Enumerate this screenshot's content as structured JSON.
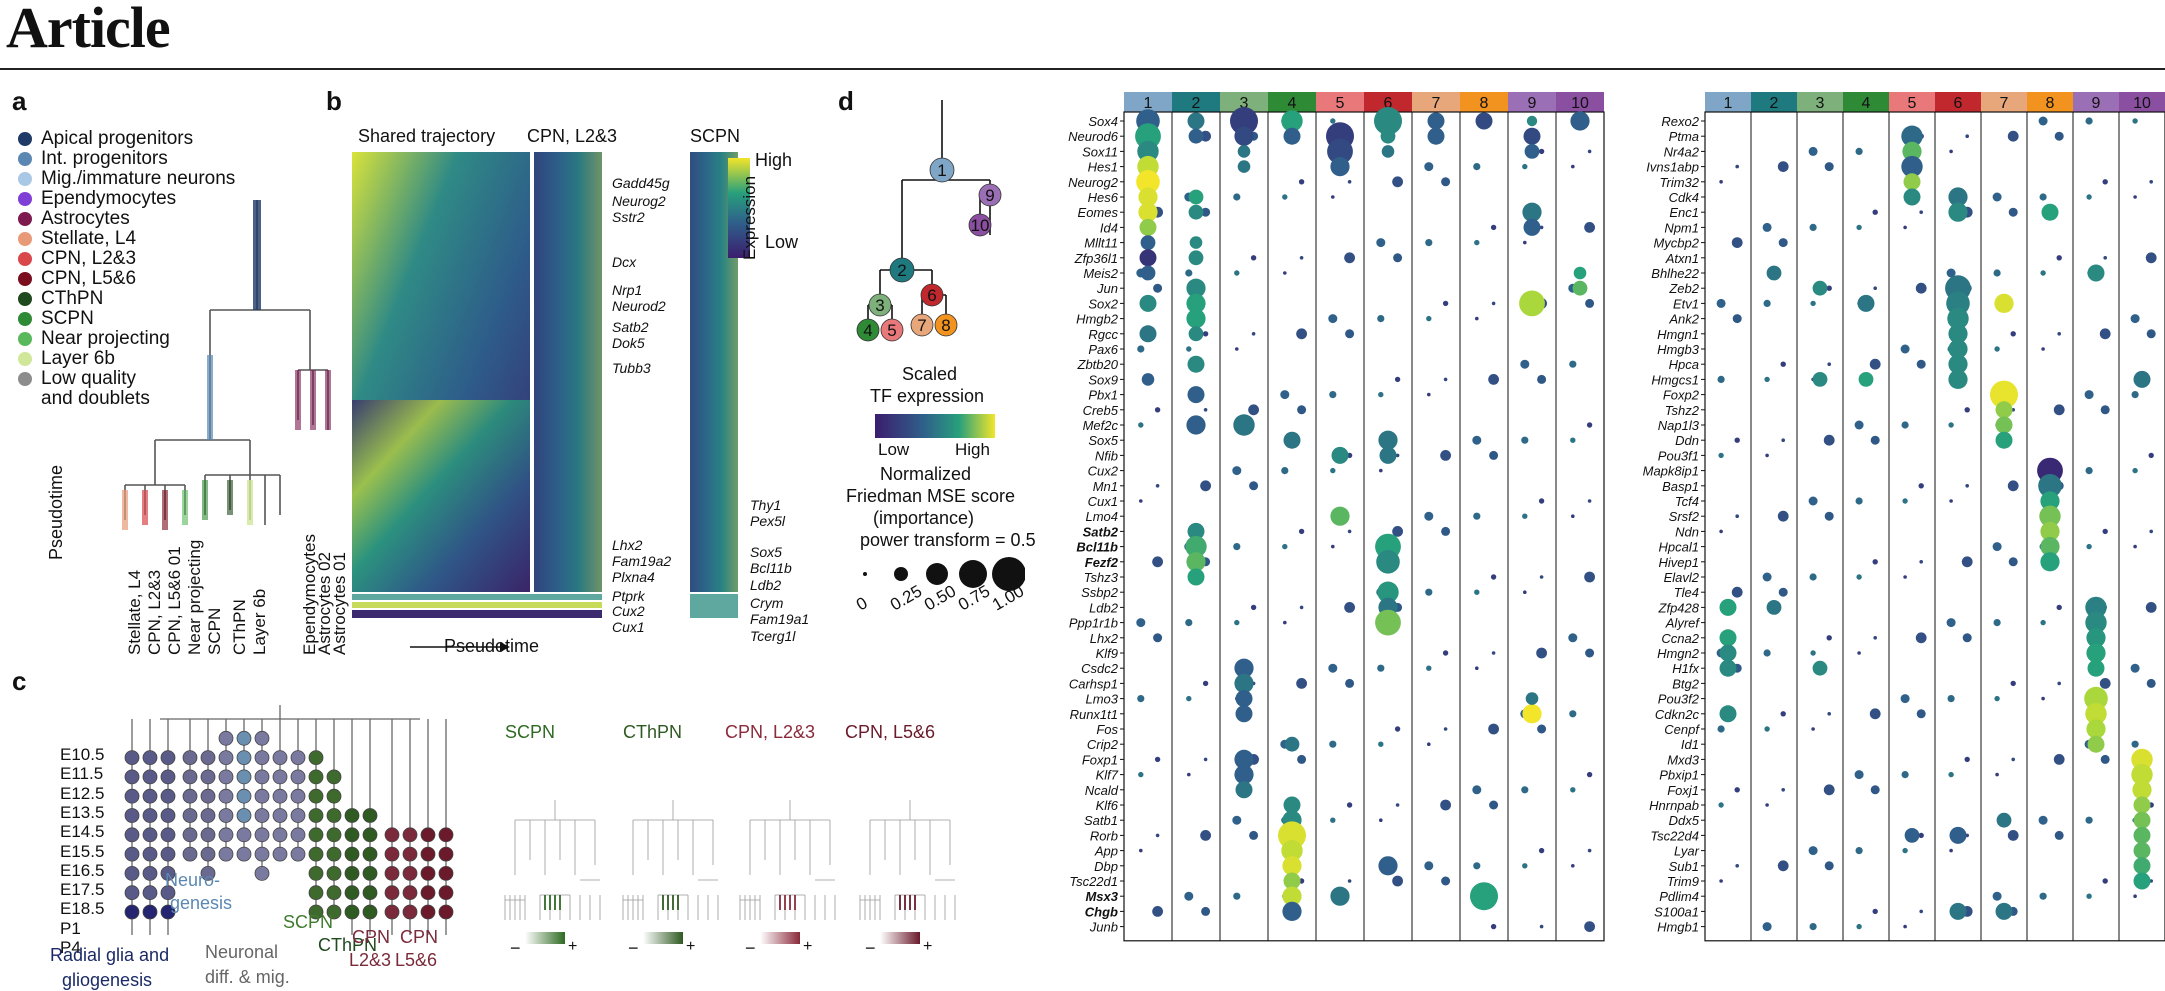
{
  "header": {
    "title": "Article"
  },
  "panel_labels": {
    "a": "a",
    "b": "b",
    "c": "c",
    "d": "d"
  },
  "panel_a": {
    "legend": [
      {
        "label": "Apical progenitors",
        "color": "#1f3a66"
      },
      {
        "label": "Int. progenitors",
        "color": "#5b88b3"
      },
      {
        "label": "Mig./immature neurons",
        "color": "#a9c8e6"
      },
      {
        "label": "Ependymocytes",
        "color": "#7f3fd6"
      },
      {
        "label": "Astrocytes",
        "color": "#7d1b4e"
      },
      {
        "label": "Stellate, L4",
        "color": "#e89a78"
      },
      {
        "label": "CPN, L2&3",
        "color": "#d9474a"
      },
      {
        "label": "CPN, L5&6",
        "color": "#7a0e1e"
      },
      {
        "label": "CThPN",
        "color": "#1f4a1d"
      },
      {
        "label": "SCPN",
        "color": "#2f8a36"
      },
      {
        "label": "Near projecting",
        "color": "#59b85c"
      },
      {
        "label": "Layer 6b",
        "color": "#d0e79a"
      },
      {
        "label": "Low quality",
        "color": "#8c8c8c"
      },
      {
        "label": "and doublets",
        "color": ""
      }
    ],
    "pseudotime_label": "Pseudotime",
    "leaf_labels": [
      "Stellate, L4",
      "CPN, L2&3",
      "CPN, L5&6 01",
      "Near projecting",
      "SCPN",
      "CThPN",
      "Layer 6b",
      "Ependymocytes",
      "Astrocytes 02",
      "Astrocytes 01"
    ]
  },
  "panel_b": {
    "titles": [
      "Shared trajectory",
      "CPN, L2&3",
      "SCPN"
    ],
    "colorbar": {
      "title": "Expression",
      "high": "High",
      "low": "Low"
    },
    "genes_cpn": [
      "Gadd45g",
      "Neurog2",
      "Sstr2",
      "Dcx",
      "Nrp1",
      "Neurod2",
      "Satb2",
      "Dok5",
      "Tubb3",
      "Lhx2",
      "Fam19a2",
      "Plxna4",
      "Ptprk",
      "Cux2",
      "Cux1"
    ],
    "genes_scpn": [
      "Thy1",
      "Pex5l",
      "Sox5",
      "Bcl11b",
      "Ldb2",
      "Crym",
      "Fam19a1",
      "Tcerg1l"
    ],
    "x_label": "Pseudotime"
  },
  "panel_c": {
    "stages": [
      "E10.5",
      "E11.5",
      "E12.5",
      "E13.5",
      "E14.5",
      "E15.5",
      "E16.5",
      "E17.5",
      "E18.5",
      "P1",
      "P4"
    ],
    "group_labels": [
      "Radial glia and",
      "gliogenesis",
      "Neuro-",
      "genesis",
      "Neuronal",
      "diff. & mig.",
      "SCPN",
      "CThPN",
      "CPN",
      "L2&3",
      "CPN",
      "L5&6"
    ],
    "subtree_titles": [
      "SCPN",
      "CThPN",
      "CPN, L2&3",
      "CPN, L5&6"
    ],
    "minus": "−",
    "plus": "+"
  },
  "panel_d": {
    "tree_nodes": [
      "1",
      "2",
      "3",
      "4",
      "5",
      "6",
      "7",
      "8",
      "9",
      "10"
    ],
    "tf_legend": {
      "title1": "Scaled",
      "title2": "TF expression",
      "low": "Low",
      "high": "High"
    },
    "size_legend": {
      "title": [
        "Normalized",
        "Friedman MSE score",
        "(importance)",
        "power transform = 0.5"
      ],
      "ticks": [
        "0",
        "0.25",
        "0.50",
        "0.75",
        "1.00"
      ]
    },
    "cluster_labels": [
      "1",
      "2",
      "3",
      "4",
      "5",
      "6",
      "7",
      "8",
      "9",
      "10"
    ],
    "cluster_colors": [
      "#7fa6c6",
      "#1f7a80",
      "#7db07a",
      "#2f8a36",
      "#e8787a",
      "#c0282d",
      "#e8a77a",
      "#f2921f",
      "#9b6fb5",
      "#8a4fa0"
    ],
    "genes_left": [
      "Sox4",
      "Neurod6",
      "Sox11",
      "Hes1",
      "Neurog2",
      "Hes6",
      "Eomes",
      "Id4",
      "Mllt11",
      "Zfp36l1",
      "Meis2",
      "Jun",
      "Sox2",
      "Hmgb2",
      "Rgcc",
      "Pax6",
      "Zbtb20",
      "Sox9",
      "Pbx1",
      "Creb5",
      "Mef2c",
      "Sox5",
      "Nfib",
      "Cux2",
      "Mn1",
      "Cux1",
      "Lmo4",
      "Satb2",
      "Bcl11b",
      "Fezf2",
      "Tshz3",
      "Ssbp2",
      "Ldb2",
      "Ppp1r1b",
      "Lhx2",
      "Klf9",
      "Csdc2",
      "Carhsp1",
      "Lmo3",
      "Runx1t1",
      "Fos",
      "Crip2",
      "Foxp1",
      "Klf7",
      "Ncald",
      "Klf6",
      "Satb1",
      "Rorb",
      "App",
      "Dbp",
      "Tsc22d1",
      "Msx3",
      "Chgb",
      "Junb"
    ],
    "genes_left_bold": [
      "Satb2",
      "Bcl11b",
      "Fezf2",
      "Msx3",
      "Chgb"
    ],
    "genes_right": [
      "Rexo2",
      "Ptma",
      "Nr4a2",
      "Ivns1abp",
      "Trim32",
      "Cdk4",
      "Enc1",
      "Npm1",
      "Mycbp2",
      "Atxn1",
      "Bhlhe22",
      "Zeb2",
      "Etv1",
      "Ank2",
      "Hmgn1",
      "Hmgb3",
      "Hpca",
      "Hmgcs1",
      "Foxp2",
      "Tshz2",
      "Nap1l3",
      "Ddn",
      "Pou3f1",
      "Mapk8ip1",
      "Basp1",
      "Tcf4",
      "Srsf2",
      "Ndn",
      "Hpcal1",
      "Hivep1",
      "Elavl2",
      "Tle4",
      "Zfp428",
      "Alyref",
      "Ccna2",
      "Hmgn2",
      "H1fx",
      "Btg2",
      "Pou3f2",
      "Cdkn2c",
      "Cenpf",
      "Id1",
      "Mxd3",
      "Pbxip1",
      "Foxj1",
      "Hnrnpab",
      "Ddx5",
      "Tsc22d4",
      "Lyar",
      "Sub1",
      "Trim9",
      "Pdlim4",
      "S100a1",
      "Hmgb1"
    ],
    "dots_left": [
      [
        0,
        0,
        0.8,
        0.3
      ],
      [
        1,
        0,
        0.5,
        0.4
      ],
      [
        2,
        0,
        1.0,
        0.15
      ],
      [
        3,
        0,
        0.7,
        0.6
      ],
      [
        5,
        0,
        1.0,
        0.5
      ],
      [
        6,
        0,
        0.5,
        0.3
      ],
      [
        7,
        0,
        0.5,
        0.2
      ],
      [
        8,
        0,
        0.2,
        0.5
      ],
      [
        0,
        1,
        0.9,
        0.6
      ],
      [
        1,
        1,
        0.4,
        0.3
      ],
      [
        2,
        1,
        0.6,
        0.2
      ],
      [
        3,
        1,
        0.5,
        0.3
      ],
      [
        4,
        1,
        1.0,
        0.15
      ],
      [
        5,
        1,
        0.4,
        0.5
      ],
      [
        6,
        1,
        0.5,
        0.3
      ],
      [
        8,
        1,
        0.5,
        0.2
      ],
      [
        0,
        2,
        0.7,
        0.5
      ],
      [
        2,
        2,
        0.3,
        0.4
      ],
      [
        4,
        2,
        0.9,
        0.2
      ],
      [
        5,
        2,
        0.3,
        0.4
      ],
      [
        8,
        2,
        0.4,
        0.3
      ],
      [
        0,
        3,
        0.7,
        0.9
      ],
      [
        2,
        3,
        0.3,
        0.4
      ],
      [
        4,
        3,
        0.6,
        0.3
      ],
      [
        0,
        4,
        0.8,
        1.0
      ],
      [
        0,
        5,
        0.6,
        0.95
      ],
      [
        0,
        6,
        0.6,
        0.95
      ],
      [
        0,
        7,
        0.5,
        0.8
      ],
      [
        8,
        6,
        0.6,
        0.4
      ],
      [
        8,
        7,
        0.5,
        0.3
      ],
      [
        1,
        5,
        0.4,
        0.6
      ],
      [
        1,
        6,
        0.4,
        0.5
      ],
      [
        0,
        8,
        0.4,
        0.3
      ],
      [
        1,
        8,
        0.3,
        0.5
      ],
      [
        0,
        9,
        0.5,
        0.1
      ],
      [
        1,
        9,
        0.4,
        0.5
      ],
      [
        0,
        10,
        0.4,
        0.3
      ],
      [
        1,
        11,
        0.6,
        0.5
      ],
      [
        0,
        12,
        0.5,
        0.5
      ],
      [
        1,
        12,
        0.6,
        0.6
      ],
      [
        8,
        12,
        0.9,
        0.85
      ],
      [
        1,
        13,
        0.6,
        0.6
      ],
      [
        0,
        14,
        0.5,
        0.4
      ],
      [
        1,
        14,
        0.4,
        0.5
      ],
      [
        1,
        16,
        0.5,
        0.5
      ],
      [
        0,
        17,
        0.3,
        0.3
      ],
      [
        1,
        18,
        0.5,
        0.3
      ],
      [
        1,
        20,
        0.6,
        0.3
      ],
      [
        2,
        20,
        0.7,
        0.4
      ],
      [
        3,
        21,
        0.5,
        0.4
      ],
      [
        4,
        22,
        0.5,
        0.5
      ],
      [
        5,
        21,
        0.6,
        0.4
      ],
      [
        5,
        22,
        0.5,
        0.4
      ],
      [
        5,
        28,
        0.9,
        0.6
      ],
      [
        5,
        29,
        0.8,
        0.5
      ],
      [
        1,
        27,
        0.5,
        0.5
      ],
      [
        1,
        28,
        0.7,
        0.65
      ],
      [
        1,
        29,
        0.6,
        0.7
      ],
      [
        1,
        30,
        0.5,
        0.6
      ],
      [
        5,
        31,
        0.7,
        0.55
      ],
      [
        5,
        32,
        0.6,
        0.4
      ],
      [
        5,
        33,
        0.9,
        0.75
      ],
      [
        2,
        36,
        0.6,
        0.3
      ],
      [
        2,
        37,
        0.6,
        0.4
      ],
      [
        2,
        38,
        0.5,
        0.3
      ],
      [
        2,
        39,
        0.5,
        0.3
      ],
      [
        3,
        41,
        0.4,
        0.4
      ],
      [
        2,
        42,
        0.6,
        0.3
      ],
      [
        2,
        43,
        0.6,
        0.3
      ],
      [
        2,
        44,
        0.5,
        0.4
      ],
      [
        3,
        45,
        0.5,
        0.5
      ],
      [
        3,
        46,
        0.6,
        0.5
      ],
      [
        3,
        47,
        1.0,
        0.95
      ],
      [
        3,
        48,
        0.7,
        0.9
      ],
      [
        3,
        49,
        0.6,
        0.95
      ],
      [
        3,
        50,
        0.5,
        0.8
      ],
      [
        3,
        51,
        0.6,
        0.9
      ],
      [
        4,
        51,
        0.6,
        0.4
      ],
      [
        7,
        51,
        1.0,
        0.6
      ],
      [
        3,
        52,
        0.6,
        0.3
      ],
      [
        5,
        49,
        0.6,
        0.3
      ],
      [
        8,
        39,
        0.6,
        1.0
      ],
      [
        8,
        38,
        0.3,
        0.4
      ],
      [
        4,
        26,
        0.6,
        0.7
      ],
      [
        9,
        0,
        0.6,
        0.3
      ],
      [
        9,
        10,
        0.3,
        0.6
      ],
      [
        9,
        11,
        0.4,
        0.7
      ]
    ],
    "dots_right": [
      [
        4,
        1,
        0.7,
        0.35
      ],
      [
        4,
        2,
        0.6,
        0.7
      ],
      [
        4,
        3,
        0.7,
        0.3
      ],
      [
        4,
        4,
        0.5,
        0.8
      ],
      [
        4,
        5,
        0.5,
        0.5
      ],
      [
        5,
        5,
        0.6,
        0.4
      ],
      [
        5,
        6,
        0.6,
        0.5
      ],
      [
        7,
        6,
        0.5,
        0.6
      ],
      [
        5,
        11,
        0.9,
        0.4
      ],
      [
        5,
        12,
        0.8,
        0.45
      ],
      [
        6,
        12,
        0.6,
        0.95
      ],
      [
        5,
        13,
        0.7,
        0.5
      ],
      [
        5,
        14,
        0.6,
        0.5
      ],
      [
        5,
        15,
        0.6,
        0.5
      ],
      [
        5,
        16,
        0.6,
        0.5
      ],
      [
        5,
        17,
        0.6,
        0.5
      ],
      [
        6,
        18,
        1.0,
        0.98
      ],
      [
        6,
        19,
        0.5,
        0.8
      ],
      [
        6,
        20,
        0.5,
        0.75
      ],
      [
        6,
        21,
        0.5,
        0.6
      ],
      [
        7,
        23,
        0.9,
        0.05
      ],
      [
        7,
        24,
        0.8,
        0.4
      ],
      [
        7,
        25,
        0.6,
        0.6
      ],
      [
        7,
        26,
        0.7,
        0.75
      ],
      [
        7,
        27,
        0.6,
        0.8
      ],
      [
        7,
        28,
        0.6,
        0.7
      ],
      [
        7,
        29,
        0.6,
        0.6
      ],
      [
        8,
        32,
        0.7,
        0.45
      ],
      [
        8,
        33,
        0.7,
        0.5
      ],
      [
        8,
        34,
        0.6,
        0.55
      ],
      [
        8,
        35,
        0.6,
        0.6
      ],
      [
        8,
        36,
        0.5,
        0.6
      ],
      [
        8,
        38,
        0.8,
        0.85
      ],
      [
        8,
        39,
        0.7,
        0.9
      ],
      [
        8,
        40,
        0.6,
        0.85
      ],
      [
        8,
        41,
        0.5,
        0.8
      ],
      [
        9,
        42,
        0.7,
        0.95
      ],
      [
        9,
        43,
        0.7,
        0.9
      ],
      [
        9,
        44,
        0.6,
        0.9
      ],
      [
        9,
        45,
        0.5,
        0.8
      ],
      [
        9,
        46,
        0.5,
        0.75
      ],
      [
        9,
        47,
        0.5,
        0.7
      ],
      [
        9,
        48,
        0.5,
        0.7
      ],
      [
        9,
        49,
        0.5,
        0.65
      ],
      [
        9,
        50,
        0.5,
        0.6
      ],
      [
        0,
        32,
        0.5,
        0.6
      ],
      [
        1,
        32,
        0.4,
        0.4
      ],
      [
        0,
        34,
        0.5,
        0.6
      ],
      [
        0,
        35,
        0.5,
        0.5
      ],
      [
        0,
        36,
        0.5,
        0.5
      ],
      [
        2,
        36,
        0.4,
        0.5
      ],
      [
        0,
        39,
        0.5,
        0.5
      ],
      [
        4,
        47,
        0.4,
        0.3
      ],
      [
        5,
        47,
        0.5,
        0.3
      ],
      [
        6,
        46,
        0.4,
        0.4
      ],
      [
        1,
        10,
        0.4,
        0.4
      ],
      [
        2,
        11,
        0.4,
        0.5
      ],
      [
        3,
        12,
        0.5,
        0.4
      ],
      [
        8,
        10,
        0.5,
        0.5
      ],
      [
        9,
        17,
        0.5,
        0.4
      ],
      [
        2,
        17,
        0.4,
        0.5
      ],
      [
        3,
        17,
        0.4,
        0.6
      ],
      [
        5,
        52,
        0.5,
        0.4
      ],
      [
        6,
        52,
        0.5,
        0.4
      ]
    ]
  }
}
